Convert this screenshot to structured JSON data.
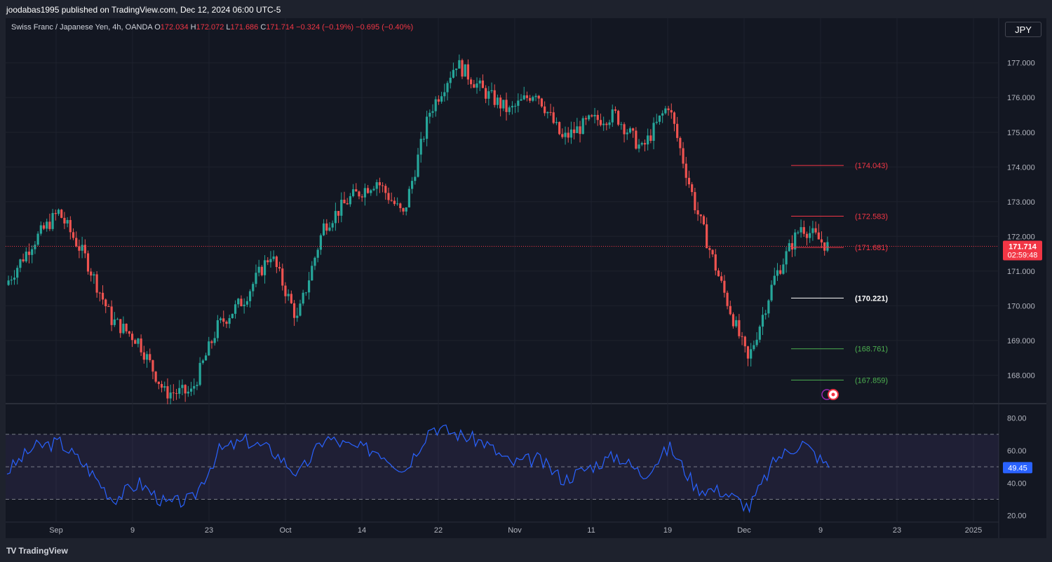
{
  "header": {
    "publisher": "joodabas1995 published on TradingView.com, Dec 12, 2024 06:00 UTC-5"
  },
  "legend": {
    "symbol": "Swiss Franc / Japanese Yen, 4h, OANDA",
    "open_label": "O",
    "open": "172.034",
    "high_label": "H",
    "high": "172.072",
    "low_label": "L",
    "low": "171.686",
    "close_label": "C",
    "close": "171.714",
    "change": "−0.324 (−0.19%)",
    "change2": "−0.695 (−0.40%)"
  },
  "currency_button": "JPY",
  "footer": {
    "brand": "TradingView"
  },
  "colors": {
    "up": "#26a69a",
    "down": "#ef5350",
    "rsi": "#2962ff",
    "resistance": "#f23645",
    "support": "#4caf50",
    "pivot": "#ffffff",
    "background": "#131722",
    "grid": "#1e222d"
  },
  "chart_data": [
    {
      "type": "line",
      "title": "Swiss Franc / Japanese Yen, 4h, OANDA",
      "note": "candlestick price series approximated by close values per day",
      "x": [
        "Aug 27",
        "Aug 30",
        "Sep 2",
        "Sep 5",
        "Sep 9",
        "Sep 12",
        "Sep 16",
        "Sep 19",
        "Sep 23",
        "Sep 26",
        "Sep 30",
        "Oct 3",
        "Oct 7",
        "Oct 10",
        "Oct 14",
        "Oct 17",
        "Oct 22",
        "Oct 25",
        "Oct 29",
        "Nov 1",
        "Nov 5",
        "Nov 8",
        "Nov 12",
        "Nov 15",
        "Nov 19",
        "Nov 22",
        "Nov 26",
        "Nov 29",
        "Dec 3",
        "Dec 6",
        "Dec 9",
        "Dec 12"
      ],
      "series": [
        {
          "values": [
            170.6,
            171.8,
            172.7,
            171.4,
            169.6,
            169.0,
            167.5,
            167.5,
            169.4,
            170.2,
            171.5,
            169.6,
            172.3,
            173.1,
            173.6,
            172.6,
            175.6,
            177.0,
            176.2,
            175.6,
            176.2,
            174.8,
            175.3,
            175.5,
            174.5,
            175.8,
            172.9,
            170.6,
            168.4,
            170.8,
            172.3,
            171.714
          ]
        }
      ],
      "ylim": [
        167.2,
        177.6
      ],
      "yticks": [
        "177.000",
        "176.000",
        "175.000",
        "174.000",
        "173.000",
        "172.000",
        "171.000",
        "170.000",
        "169.000",
        "168.000"
      ],
      "xticks": [
        "Sep",
        "9",
        "23",
        "Oct",
        "14",
        "22",
        "Nov",
        "11",
        "19",
        "Dec",
        "9",
        "23",
        "2025"
      ],
      "last_price": {
        "value": "171.714",
        "countdown": "02:59:48"
      },
      "levels": [
        {
          "label": "(174.043)",
          "value": 174.043,
          "kind": "resistance"
        },
        {
          "label": "(172.583)",
          "value": 172.583,
          "kind": "resistance"
        },
        {
          "label": "(171.681)",
          "value": 171.681,
          "kind": "resistance"
        },
        {
          "label": "(170.221)",
          "value": 170.221,
          "kind": "pivot"
        },
        {
          "label": "(168.761)",
          "value": 168.761,
          "kind": "support"
        },
        {
          "label": "(167.859)",
          "value": 167.859,
          "kind": "support"
        }
      ]
    },
    {
      "type": "line",
      "note": "RSI oscillator pane",
      "x": [
        "Aug 27",
        "Aug 30",
        "Sep 2",
        "Sep 5",
        "Sep 9",
        "Sep 12",
        "Sep 16",
        "Sep 19",
        "Sep 23",
        "Sep 26",
        "Sep 30",
        "Oct 3",
        "Oct 7",
        "Oct 10",
        "Oct 14",
        "Oct 17",
        "Oct 22",
        "Oct 25",
        "Oct 29",
        "Nov 1",
        "Nov 5",
        "Nov 8",
        "Nov 12",
        "Nov 15",
        "Nov 19",
        "Nov 22",
        "Nov 26",
        "Nov 29",
        "Dec 3",
        "Dec 6",
        "Dec 9",
        "Dec 12"
      ],
      "series": [
        {
          "values": [
            47,
            62,
            65,
            50,
            30,
            40,
            27,
            30,
            60,
            66,
            60,
            45,
            68,
            62,
            60,
            48,
            75,
            70,
            65,
            52,
            55,
            42,
            50,
            57,
            45,
            62,
            37,
            35,
            25,
            55,
            65,
            49.45
          ]
        }
      ],
      "ylim": [
        16,
        88
      ],
      "yticks": [
        "80.00",
        "60.00",
        "40.00",
        "20.00"
      ],
      "bands": [
        30,
        50,
        70
      ],
      "last_value": "49.45"
    }
  ]
}
